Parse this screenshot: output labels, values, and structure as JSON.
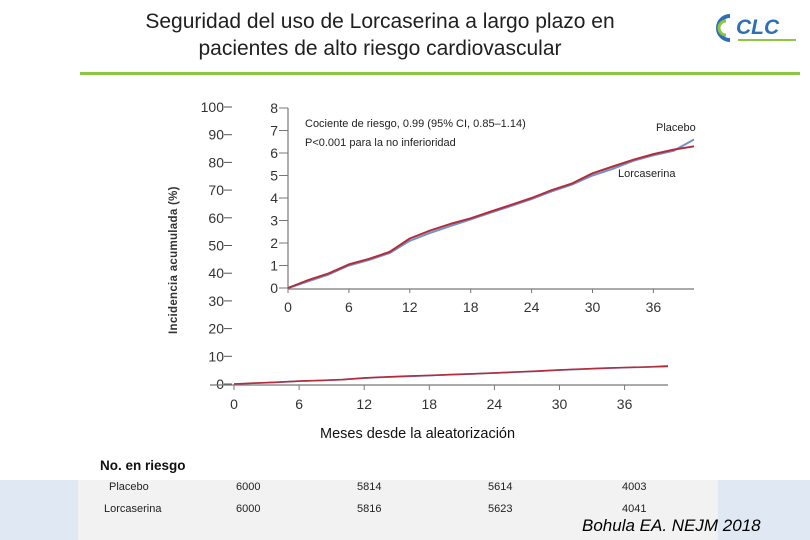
{
  "slide": {
    "title_line1": "Seguridad del uso de Lorcaserina a largo plazo en",
    "title_line2": "pacientes de alto riesgo cardiovascular",
    "logo_text": "CLC",
    "accent_color": "#8dc63f",
    "citation": "Bohula EA. NEJM 2018"
  },
  "chart_data": {
    "type": "line",
    "ylabel": "Incidencia acumulada (%)",
    "xlabel": "Meses desde la aleatorización",
    "main_axis": {
      "xlim": [
        0,
        40
      ],
      "ylim": [
        0,
        100
      ],
      "x_ticks": [
        0,
        6,
        12,
        18,
        24,
        30,
        36
      ],
      "y_ticks": [
        0,
        10,
        20,
        30,
        40,
        50,
        60,
        70,
        80,
        90,
        100
      ]
    },
    "inset": {
      "xlim": [
        0,
        40
      ],
      "ylim": [
        0,
        8
      ],
      "x_ticks": [
        0,
        6,
        12,
        18,
        24,
        30,
        36
      ],
      "y_ticks": [
        0,
        1,
        2,
        3,
        4,
        5,
        6,
        7,
        8
      ],
      "annotation_line1": "Cociente de riesgo, 0.99 (95% CI, 0.85–1.14)",
      "annotation_line2": "P<0.001 para la no inferioridad"
    },
    "series": [
      {
        "name": "Placebo",
        "color": "#6f94c6",
        "x": [
          0,
          2,
          4,
          6,
          8,
          10,
          12,
          14,
          16,
          18,
          20,
          22,
          24,
          26,
          28,
          30,
          32,
          34,
          36,
          38,
          40
        ],
        "y": [
          0,
          0.3,
          0.6,
          1.0,
          1.25,
          1.55,
          2.1,
          2.45,
          2.75,
          3.05,
          3.35,
          3.65,
          3.95,
          4.3,
          4.6,
          5.0,
          5.3,
          5.65,
          5.9,
          6.1,
          6.6
        ]
      },
      {
        "name": "Lorcaserina",
        "color": "#b22d3c",
        "x": [
          0,
          2,
          4,
          6,
          8,
          10,
          12,
          14,
          16,
          18,
          20,
          22,
          24,
          26,
          28,
          30,
          32,
          34,
          36,
          38,
          40
        ],
        "y": [
          0,
          0.35,
          0.65,
          1.05,
          1.3,
          1.6,
          2.2,
          2.55,
          2.85,
          3.1,
          3.4,
          3.7,
          4.0,
          4.35,
          4.65,
          5.1,
          5.4,
          5.7,
          5.95,
          6.15,
          6.3
        ]
      }
    ]
  },
  "risk_table": {
    "title": "No. en riesgo",
    "rows": [
      {
        "label": "Placebo",
        "values": [
          "6000",
          "5814",
          "5614",
          "4003"
        ]
      },
      {
        "label": "Lorcaserina",
        "values": [
          "6000",
          "5816",
          "5623",
          "4041"
        ]
      }
    ]
  }
}
